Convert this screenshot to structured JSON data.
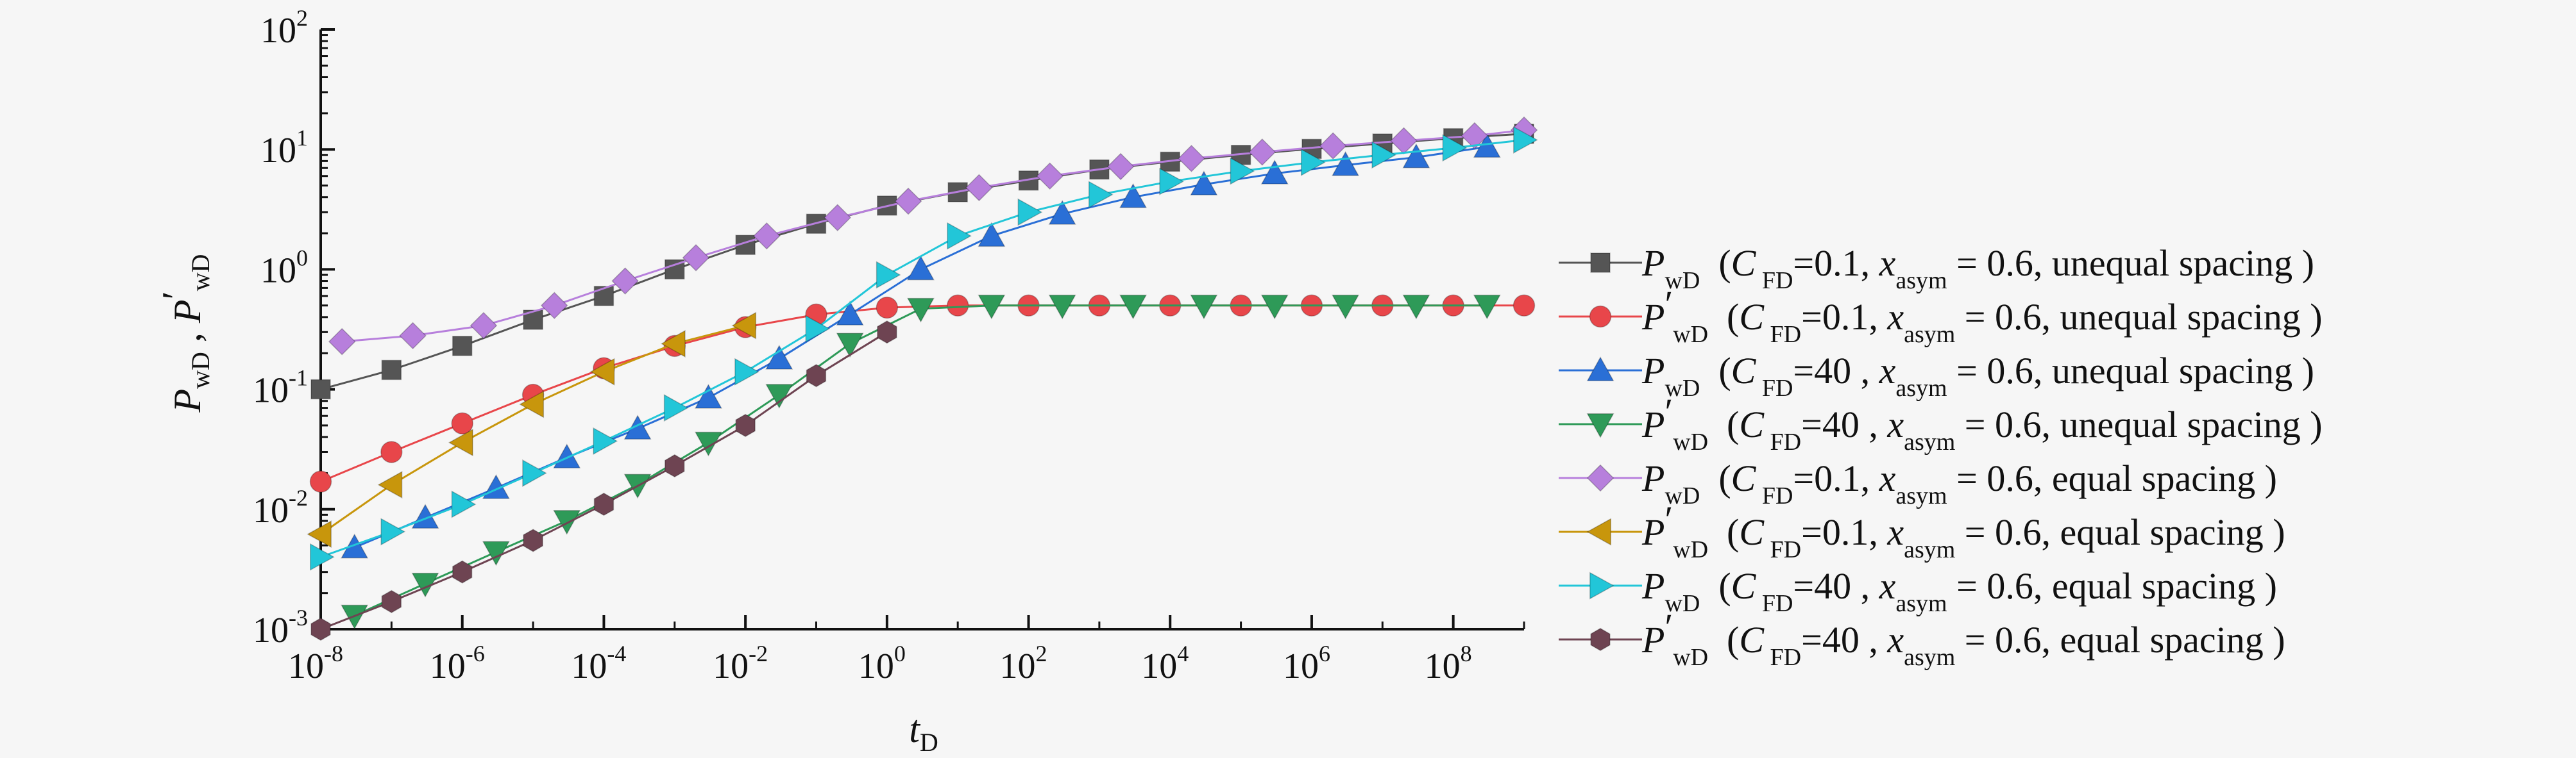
{
  "chart_data": {
    "type": "line",
    "xlabel": "t",
    "xlabel_sub": "D",
    "ylabel_parts": [
      {
        "base": "P",
        "sub": "wD"
      },
      {
        "sep": " , "
      },
      {
        "base": "P",
        "prime": "′",
        "sub": "wD"
      }
    ],
    "x_scale": "log",
    "y_scale": "log",
    "xlim": [
      1e-08,
      1000000000.0
    ],
    "ylim": [
      0.001,
      100.0
    ],
    "x_ticks": [
      {
        "base": "10",
        "exp": "-8",
        "value": 1e-08
      },
      {
        "base": "10",
        "exp": "-6",
        "value": 1e-06
      },
      {
        "base": "10",
        "exp": "-4",
        "value": 0.0001
      },
      {
        "base": "10",
        "exp": "-2",
        "value": 0.01
      },
      {
        "base": "10",
        "exp": "0",
        "value": 1
      },
      {
        "base": "10",
        "exp": "2",
        "value": 100.0
      },
      {
        "base": "10",
        "exp": "4",
        "value": 10000.0
      },
      {
        "base": "10",
        "exp": "6",
        "value": 1000000.0
      },
      {
        "base": "10",
        "exp": "8",
        "value": 100000000.0
      }
    ],
    "y_ticks": [
      {
        "base": "10",
        "exp": "-3",
        "value": 0.001
      },
      {
        "base": "10",
        "exp": "-2",
        "value": 0.01
      },
      {
        "base": "10",
        "exp": "-1",
        "value": 0.1
      },
      {
        "base": "10",
        "exp": "0",
        "value": 1
      },
      {
        "base": "10",
        "exp": "1",
        "value": 10
      },
      {
        "base": "10",
        "exp": "2",
        "value": 100
      }
    ],
    "grid": false,
    "legend_position": "right",
    "series": [
      {
        "name": "P_wD (C_FD=0.1, x_asym = 0.6, unequal spacing )",
        "legend": {
          "base": "P",
          "prime": "",
          "sub": "wD",
          "text1": "(",
          "c": "C",
          "csub": "FD",
          "cval": "=0.1, ",
          "x": "x",
          "xsub": "asym",
          "rest": " = 0.6, unequal spacing )"
        },
        "color": "#555555",
        "marker": "square",
        "x": [
          1e-08,
          1e-07,
          1e-06,
          1e-05,
          0.0001,
          0.001,
          0.01,
          0.1,
          1,
          10.0,
          100.0,
          1000.0,
          10000.0,
          100000.0,
          1000000.0,
          10000000.0,
          100000000.0,
          1000000000.0
        ],
        "y": [
          0.1,
          0.145,
          0.23,
          0.38,
          0.6,
          1.0,
          1.6,
          2.4,
          3.4,
          4.4,
          5.5,
          6.8,
          7.9,
          9.0,
          10.1,
          11.2,
          12.4,
          13.5
        ]
      },
      {
        "name": "P'_wD (C_FD=0.1, x_asym = 0.6, unequal spacing )",
        "legend": {
          "base": "P",
          "prime": "′",
          "sub": "wD",
          "text1": "(",
          "c": "C",
          "csub": "FD",
          "cval": "=0.1, ",
          "x": "x",
          "xsub": "asym",
          "rest": " = 0.6, unequal spacing )"
        },
        "color": "#e8464a",
        "marker": "circle",
        "x": [
          1e-08,
          1e-07,
          1e-06,
          1e-05,
          0.0001,
          0.001,
          0.01,
          0.1,
          1,
          10.0,
          100.0,
          1000.0,
          10000.0,
          100000.0,
          1000000.0,
          10000000.0,
          100000000.0,
          1000000000.0
        ],
        "y": [
          0.017,
          0.03,
          0.052,
          0.09,
          0.15,
          0.23,
          0.33,
          0.42,
          0.48,
          0.5,
          0.5,
          0.5,
          0.5,
          0.5,
          0.5,
          0.5,
          0.5,
          0.5
        ]
      },
      {
        "name": "P_wD (C_FD=40 , x_asym = 0.6, unequal spacing )",
        "legend": {
          "base": "P",
          "prime": "",
          "sub": "wD",
          "text1": "(",
          "c": "C",
          "csub": "FD",
          "cval": "=40 , ",
          "x": "x",
          "xsub": "asym",
          "rest": " = 0.6, unequal spacing )"
        },
        "color": "#2a6fd6",
        "marker": "triangle-up",
        "x": [
          3e-08,
          3e-07,
          3e-06,
          3e-05,
          0.0003,
          0.003,
          0.03,
          0.3,
          3,
          30.0,
          300.0,
          3000.0,
          30000.0,
          300000.0,
          3000000.0,
          30000000.0,
          300000000.0
        ],
        "y": [
          0.0048,
          0.0085,
          0.015,
          0.027,
          0.047,
          0.085,
          0.18,
          0.42,
          1.0,
          1.9,
          2.9,
          4.0,
          5.1,
          6.3,
          7.4,
          8.6,
          10.5
        ]
      },
      {
        "name": "P'_wD (C_FD=40 , x_asym = 0.6, unequal spacing )",
        "legend": {
          "base": "P",
          "prime": "′",
          "sub": "wD",
          "text1": "(",
          "c": "C",
          "csub": "FD",
          "cval": "=40 , ",
          "x": "x",
          "xsub": "asym",
          "rest": " = 0.6, unequal spacing )"
        },
        "color": "#2e9a58",
        "marker": "triangle-down",
        "x": [
          3e-08,
          3e-07,
          3e-06,
          3e-05,
          0.0003,
          0.003,
          0.03,
          0.3,
          3,
          30.0,
          300.0,
          3000.0,
          30000.0,
          300000.0,
          3000000.0,
          30000000.0,
          300000000.0
        ],
        "y": [
          0.0013,
          0.0024,
          0.0044,
          0.008,
          0.016,
          0.036,
          0.09,
          0.24,
          0.47,
          0.5,
          0.5,
          0.5,
          0.5,
          0.5,
          0.5,
          0.5,
          0.5
        ]
      },
      {
        "name": "P_wD (C_FD=0.1, x_asym = 0.6, equal spacing )",
        "legend": {
          "base": "P",
          "prime": "",
          "sub": "wD",
          "text1": "(",
          "c": "C",
          "csub": "FD",
          "cval": "=0.1, ",
          "x": "x",
          "xsub": "asym",
          "rest": " = 0.6, equal spacing )"
        },
        "color": "#b77fdc",
        "marker": "diamond",
        "x": [
          2e-08,
          2e-07,
          2e-06,
          2e-05,
          0.0002,
          0.002,
          0.02,
          0.2,
          2,
          20.0,
          200.0,
          2000.0,
          20000.0,
          200000.0,
          2000000.0,
          20000000.0,
          200000000.0,
          1000000000.0
        ],
        "y": [
          0.25,
          0.28,
          0.34,
          0.5,
          0.8,
          1.25,
          1.9,
          2.7,
          3.7,
          4.8,
          6.0,
          7.2,
          8.4,
          9.5,
          10.7,
          11.8,
          13.0,
          14.5
        ]
      },
      {
        "name": "P'_wD (C_FD=0.1, x_asym = 0.6, equal spacing )",
        "legend": {
          "base": "P",
          "prime": "′",
          "sub": "wD",
          "text1": "(",
          "c": "C",
          "csub": "FD",
          "cval": "=0.1, ",
          "x": "x",
          "xsub": "asym",
          "rest": " = 0.6, equal spacing )"
        },
        "color": "#c8960c",
        "marker": "triangle-left",
        "x": [
          1e-08,
          1e-07,
          1e-06,
          1e-05,
          0.0001,
          0.001,
          0.01
        ],
        "y": [
          0.0062,
          0.016,
          0.036,
          0.075,
          0.14,
          0.24,
          0.34
        ]
      },
      {
        "name": "P_wD (C_FD=40 , x_asym = 0.6, equal spacing )",
        "legend": {
          "base": "P",
          "prime": "",
          "sub": "wD",
          "text1": "(",
          "c": "C",
          "csub": "FD",
          "cval": "=40 , ",
          "x": "x",
          "xsub": "asym",
          "rest": " = 0.6, equal spacing )"
        },
        "color": "#22c6d8",
        "marker": "triangle-right",
        "x": [
          1e-08,
          1e-07,
          1e-06,
          1e-05,
          0.0001,
          0.001,
          0.01,
          0.1,
          1,
          10.0,
          100.0,
          1000.0,
          10000.0,
          100000.0,
          1000000.0,
          10000000.0,
          100000000.0,
          1000000000.0
        ],
        "y": [
          0.004,
          0.0065,
          0.011,
          0.02,
          0.037,
          0.07,
          0.14,
          0.32,
          0.9,
          1.9,
          3.0,
          4.2,
          5.4,
          6.6,
          7.8,
          9.0,
          10.3,
          12.0
        ]
      },
      {
        "name": "P'_wD (C_FD=40 , x_asym = 0.6, equal spacing )",
        "legend": {
          "base": "P",
          "prime": "′",
          "sub": "wD",
          "text1": "(",
          "c": "C",
          "csub": "FD",
          "cval": "=40 , ",
          "x": "x",
          "xsub": "asym",
          "rest": " = 0.6, equal spacing )"
        },
        "color": "#6e4452",
        "marker": "hexagon",
        "x": [
          1e-08,
          1e-07,
          1e-06,
          1e-05,
          0.0001,
          0.001,
          0.01,
          0.1,
          1
        ],
        "y": [
          0.001,
          0.0017,
          0.003,
          0.0055,
          0.011,
          0.023,
          0.05,
          0.13,
          0.3
        ]
      }
    ]
  }
}
